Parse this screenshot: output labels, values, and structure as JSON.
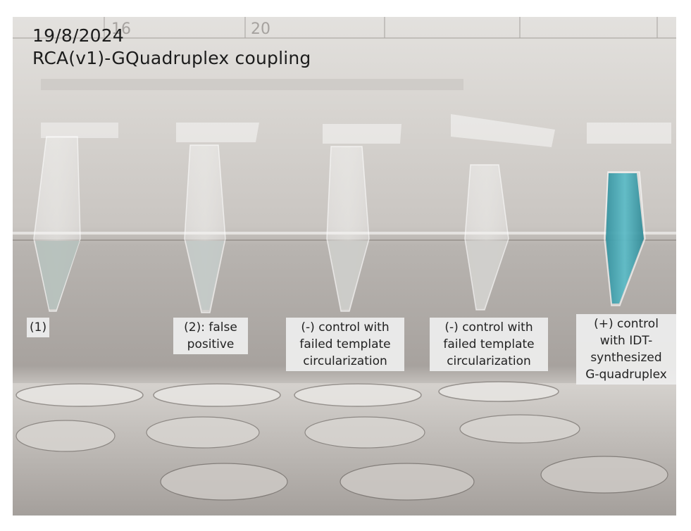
{
  "photo": {
    "date": "19/8/2024",
    "title": "RCA(v1)-GQuadruplex coupling",
    "ruler_marks": [
      "16",
      "20"
    ]
  },
  "tubes": [
    {
      "label_lines": [
        "(1)"
      ],
      "liquid_color": "#b9c4c1"
    },
    {
      "label_lines": [
        "(2): false",
        "positive"
      ],
      "liquid_color": "#c4cbc8"
    },
    {
      "label_lines": [
        "(-) control with",
        "failed template",
        "circularization"
      ],
      "liquid_color": "#ccccca"
    },
    {
      "label_lines": [
        "(-) control with",
        "failed template",
        "circularization"
      ],
      "liquid_color": "#d0cfcc"
    },
    {
      "label_lines": [
        "(+) control",
        "with IDT-",
        "synthesized",
        "G-quadruplex"
      ],
      "liquid_color": "#3aa5b3"
    }
  ],
  "colors": {
    "background_light": "#e4e2df",
    "background_mid": "#bdb8b3",
    "background_dark": "#8f8a86",
    "positive_blue": "#3aa5b3"
  }
}
